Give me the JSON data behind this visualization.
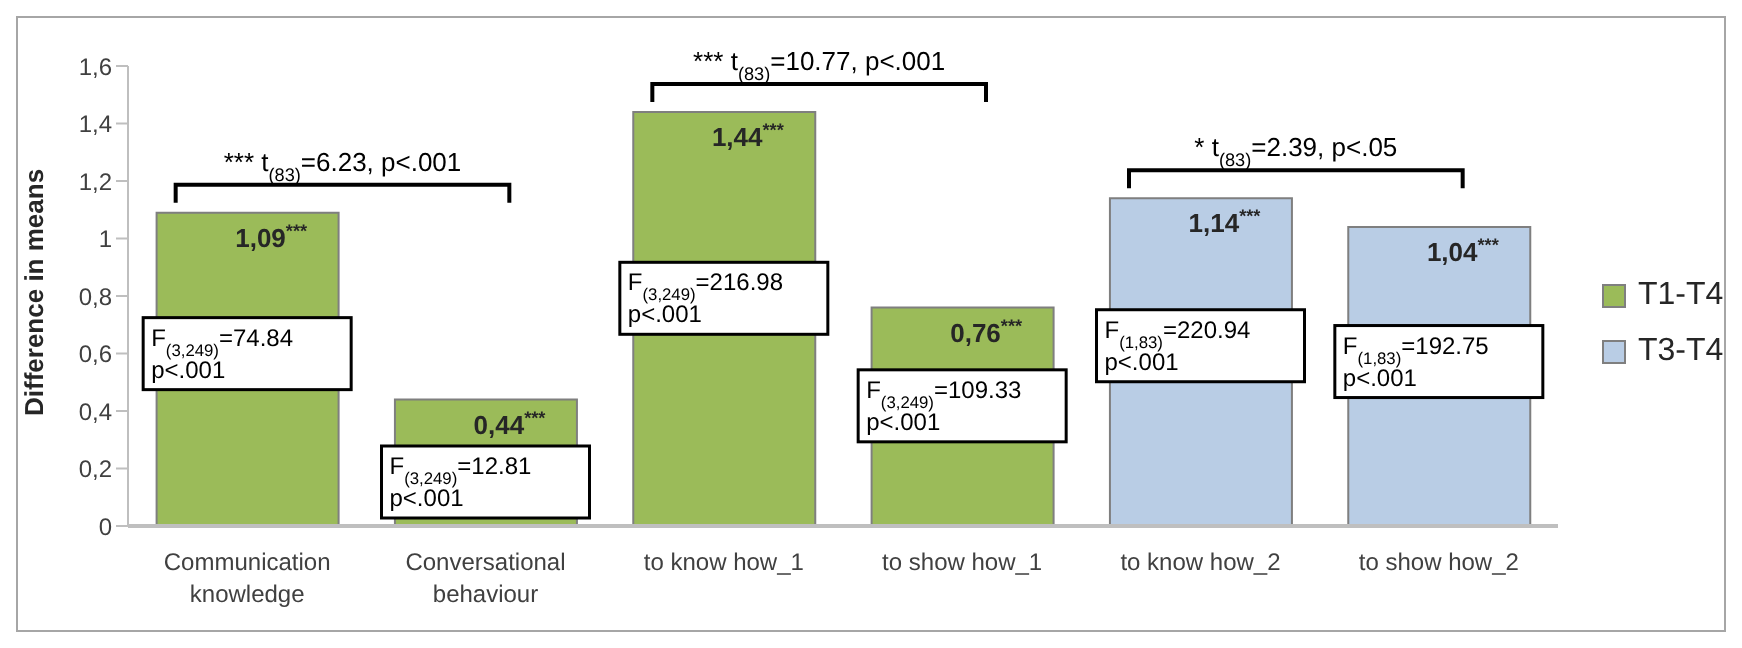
{
  "chart_data": {
    "type": "bar",
    "ylabel": "Difference in means",
    "categories": [
      "Communication knowledge",
      "Conversational behaviour",
      "to know how_1",
      "to show how_1",
      "to know how_2",
      "to show how_2"
    ],
    "series": [
      {
        "name": "T1-T4",
        "color": "#9bbb59",
        "values": [
          1.09,
          0.44,
          1.44,
          0.76,
          null,
          null
        ],
        "value_labels": [
          "1,09$^{***}$",
          "0,44$^{***}$",
          "1,44$^{***}$",
          "0,76$^{***}$",
          null,
          null
        ]
      },
      {
        "name": "T3-T4",
        "color": "#b9cde5",
        "values": [
          null,
          null,
          null,
          null,
          1.14,
          1.04
        ],
        "value_labels": [
          null,
          null,
          null,
          null,
          "1,14$^{***}$",
          "1,04$^{***}$"
        ]
      }
    ],
    "stacked": true,
    "ylim": [
      0,
      1.6
    ],
    "yticks": [
      0,
      {
        "value": 0.2,
        "label": "0,2"
      },
      {
        "value": 0.4,
        "label": "0,4"
      },
      {
        "value": 0.6,
        "label": "0,6"
      },
      {
        "value": 0.8,
        "label": "0,8"
      },
      1,
      {
        "value": 1.2,
        "label": "1,2"
      },
      {
        "value": 1.4,
        "label": "1,4"
      },
      {
        "value": 1.6,
        "label": "1,6"
      }
    ],
    "legend": "right",
    "annotations": [
      "F$_{(3,249)}$=74.84\np<.001",
      "F$_{(3,249)}$=12.81\np<.001",
      "F$_{(3,249)}$=216.98\np<.001",
      "F$_{(3,249)}$=109.33\np<.001",
      "F$_{(1,83)}$=220.94\np<.001",
      "F$_{(1,83)}$=192.75\np<.001",
      "*** t$_{(83)}$=6.23, p<.001",
      "*** t$_{(83)}$=10.77, p<.001",
      "* t$_{(83)}$=2.39, p<.05"
    ]
  }
}
